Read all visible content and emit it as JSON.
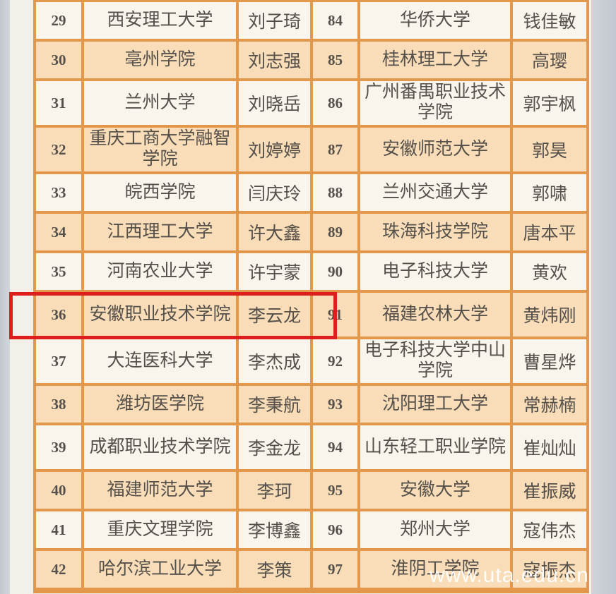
{
  "page": {
    "watermark_text": "www.uta.edu.cn",
    "colors": {
      "grid_border": "#e2974a",
      "row_cream": "#faf5ec",
      "row_peach": "#f8ddb8",
      "highlight_red": "#de1d1d",
      "text": "#55504a",
      "gutter_left": "#cdd2d9",
      "gutter_right": "#c8cdd4",
      "watermark": "#ffffff"
    }
  },
  "highlight": {
    "shape": "red-rectangle",
    "around_row_number": "36",
    "note_row_content": "安徽职业技术学院 李云龙"
  },
  "table": {
    "rows": [
      {
        "left": {
          "no": "29",
          "school": "西安理工大学",
          "name": "刘子琦"
        },
        "right": {
          "no": "84",
          "school": "华侨大学",
          "name": "钱佳敏"
        }
      },
      {
        "left": {
          "no": "30",
          "school": "亳州学院",
          "name": "刘志强"
        },
        "right": {
          "no": "85",
          "school": "桂林理工大学",
          "name": "高璎"
        }
      },
      {
        "left": {
          "no": "31",
          "school": "兰州大学",
          "name": "刘晓岳"
        },
        "right": {
          "no": "86",
          "school": "广州番禺职业技术学院",
          "name": "郭宇枫"
        }
      },
      {
        "left": {
          "no": "32",
          "school": "重庆工商大学融智学院",
          "name": "刘婷婷"
        },
        "right": {
          "no": "87",
          "school": "安徽师范大学",
          "name": "郭昊"
        }
      },
      {
        "left": {
          "no": "33",
          "school": "皖西学院",
          "name": "闫庆玲"
        },
        "right": {
          "no": "88",
          "school": "兰州交通大学",
          "name": "郭啸"
        }
      },
      {
        "left": {
          "no": "34",
          "school": "江西理工大学",
          "name": "许大鑫"
        },
        "right": {
          "no": "89",
          "school": "珠海科技学院",
          "name": "唐本平"
        }
      },
      {
        "left": {
          "no": "35",
          "school": "河南农业大学",
          "name": "许宇蒙"
        },
        "right": {
          "no": "90",
          "school": "电子科技大学",
          "name": "黄欢"
        }
      },
      {
        "left": {
          "no": "36",
          "school": "安徽职业技术学院",
          "name": "李云龙"
        },
        "right": {
          "no": "91",
          "school": "福建农林大学",
          "name": "黄炜刚"
        }
      },
      {
        "left": {
          "no": "37",
          "school": "大连医科大学",
          "name": "李杰成"
        },
        "right": {
          "no": "92",
          "school": "电子科技大学中山学院",
          "name": "曹星烨"
        }
      },
      {
        "left": {
          "no": "38",
          "school": "潍坊医学院",
          "name": "李秉航"
        },
        "right": {
          "no": "93",
          "school": "沈阳理工大学",
          "name": "常赫楠"
        }
      },
      {
        "left": {
          "no": "39",
          "school": "成都职业技术学院",
          "name": "李金龙"
        },
        "right": {
          "no": "94",
          "school": "山东轻工职业学院",
          "name": "崔灿灿"
        }
      },
      {
        "left": {
          "no": "40",
          "school": "福建师范大学",
          "name": "李珂"
        },
        "right": {
          "no": "95",
          "school": "安徽大学",
          "name": "崔振威"
        }
      },
      {
        "left": {
          "no": "41",
          "school": "重庆文理学院",
          "name": "李博鑫"
        },
        "right": {
          "no": "96",
          "school": "郑州大学",
          "name": "寇伟杰"
        }
      },
      {
        "left": {
          "no": "42",
          "school": "哈尔滨工业大学",
          "name": "李策"
        },
        "right": {
          "no": "97",
          "school": "淮阴工学院",
          "name": "寇振杰"
        }
      }
    ]
  }
}
